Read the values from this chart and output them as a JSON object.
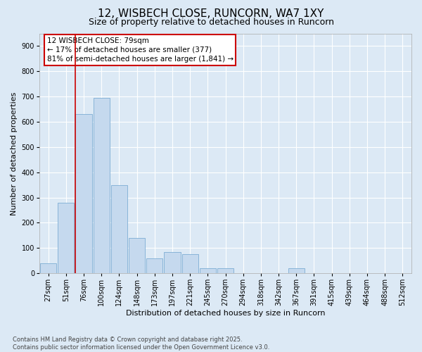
{
  "title": "12, WISBECH CLOSE, RUNCORN, WA7 1XY",
  "subtitle": "Size of property relative to detached houses in Runcorn",
  "xlabel": "Distribution of detached houses by size in Runcorn",
  "ylabel": "Number of detached properties",
  "categories": [
    "27sqm",
    "51sqm",
    "76sqm",
    "100sqm",
    "124sqm",
    "148sqm",
    "173sqm",
    "197sqm",
    "221sqm",
    "245sqm",
    "270sqm",
    "294sqm",
    "318sqm",
    "342sqm",
    "367sqm",
    "391sqm",
    "415sqm",
    "439sqm",
    "464sqm",
    "488sqm",
    "512sqm"
  ],
  "values": [
    40,
    280,
    630,
    695,
    350,
    140,
    60,
    85,
    75,
    20,
    20,
    0,
    0,
    0,
    20,
    0,
    0,
    0,
    0,
    0,
    0
  ],
  "bar_color": "#c5d9ee",
  "bar_edge_color": "#7dadd4",
  "vline_x_index": 2,
  "vline_color": "#cc0000",
  "annotation_text": "12 WISBECH CLOSE: 79sqm\n← 17% of detached houses are smaller (377)\n81% of semi-detached houses are larger (1,841) →",
  "annotation_box_color": "#ffffff",
  "annotation_box_edge": "#cc0000",
  "ylim": [
    0,
    950
  ],
  "yticks": [
    0,
    100,
    200,
    300,
    400,
    500,
    600,
    700,
    800,
    900
  ],
  "background_color": "#dce9f5",
  "plot_bg_color": "#dce9f5",
  "footnote": "Contains HM Land Registry data © Crown copyright and database right 2025.\nContains public sector information licensed under the Open Government Licence v3.0.",
  "title_fontsize": 11,
  "subtitle_fontsize": 9,
  "label_fontsize": 8,
  "tick_fontsize": 7,
  "annot_fontsize": 7.5,
  "footnote_fontsize": 6
}
